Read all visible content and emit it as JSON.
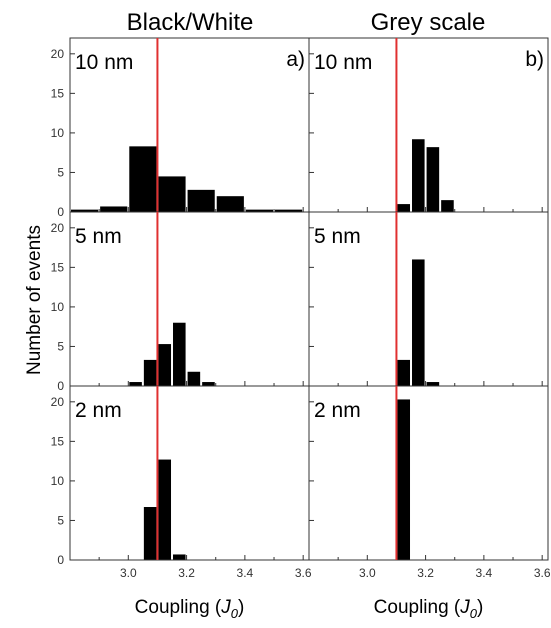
{
  "figure": {
    "column_titles": [
      "Black/White",
      "Grey scale"
    ],
    "ylabel": "Number of events",
    "xlabel_prefix": "Coupling (",
    "xlabel_symbol": "J",
    "xlabel_subscript": "0",
    "xlabel_suffix": ")",
    "colors": {
      "bar": "#000000",
      "threshold": "#e03030",
      "axis": "#333333"
    }
  },
  "chart_data": [
    {
      "type": "bar",
      "panel_label": "a)",
      "size_label": "10 nm",
      "row": 0,
      "col": 0,
      "xlim": [
        2.8,
        3.62
      ],
      "ylim": [
        0,
        22
      ],
      "xticks": [
        3.0,
        3.2,
        3.4,
        3.6
      ],
      "yticks": [
        0,
        5,
        10,
        15,
        20
      ],
      "threshold": 3.1,
      "bin_width": 0.05,
      "bins": [
        2.85,
        2.95,
        3.05,
        3.15,
        3.25,
        3.35,
        3.45,
        3.55
      ],
      "values": [
        0.3,
        0.7,
        8.3,
        4.5,
        2.8,
        2.0,
        0.3,
        0.3
      ]
    },
    {
      "type": "bar",
      "panel_label": "b)",
      "size_label": "10 nm",
      "row": 0,
      "col": 1,
      "xlim": [
        2.8,
        3.62
      ],
      "ylim": [
        0,
        22
      ],
      "xticks": [
        3.0,
        3.2,
        3.4,
        3.6
      ],
      "yticks": [
        0,
        5,
        10,
        15,
        20
      ],
      "threshold": 3.1,
      "bin_width": 0.025,
      "bins": [
        3.125,
        3.175,
        3.225,
        3.275
      ],
      "values": [
        1.0,
        9.2,
        8.2,
        1.5
      ]
    },
    {
      "type": "bar",
      "panel_label": "",
      "size_label": "5 nm",
      "row": 1,
      "col": 0,
      "xlim": [
        2.8,
        3.62
      ],
      "ylim": [
        0,
        22
      ],
      "xticks": [
        3.0,
        3.2,
        3.4,
        3.6
      ],
      "yticks": [
        0,
        5,
        10,
        15,
        20
      ],
      "threshold": 3.1,
      "bin_width": 0.025,
      "bins": [
        3.025,
        3.075,
        3.125,
        3.175,
        3.225,
        3.275
      ],
      "values": [
        0.5,
        3.3,
        5.3,
        8.0,
        1.8,
        0.5
      ]
    },
    {
      "type": "bar",
      "panel_label": "",
      "size_label": "5 nm",
      "row": 1,
      "col": 1,
      "xlim": [
        2.8,
        3.62
      ],
      "ylim": [
        0,
        22
      ],
      "xticks": [
        3.0,
        3.2,
        3.4,
        3.6
      ],
      "yticks": [
        0,
        5,
        10,
        15,
        20
      ],
      "threshold": 3.1,
      "bin_width": 0.025,
      "bins": [
        3.125,
        3.175,
        3.225
      ],
      "values": [
        3.3,
        16.0,
        0.5
      ]
    },
    {
      "type": "bar",
      "panel_label": "",
      "size_label": "2 nm",
      "row": 2,
      "col": 0,
      "xlim": [
        2.8,
        3.62
      ],
      "ylim": [
        0,
        22
      ],
      "xticks": [
        3.0,
        3.2,
        3.4,
        3.6
      ],
      "yticks": [
        0,
        5,
        10,
        15,
        20
      ],
      "threshold": 3.1,
      "bin_width": 0.025,
      "bins": [
        3.075,
        3.125,
        3.175
      ],
      "values": [
        6.7,
        12.7,
        0.7
      ]
    },
    {
      "type": "bar",
      "panel_label": "",
      "size_label": "2 nm",
      "row": 2,
      "col": 1,
      "xlim": [
        2.8,
        3.62
      ],
      "ylim": [
        0,
        22
      ],
      "xticks": [
        3.0,
        3.2,
        3.4,
        3.6
      ],
      "yticks": [
        0,
        5,
        10,
        15,
        20
      ],
      "threshold": 3.1,
      "bin_width": 0.025,
      "bins": [
        3.125
      ],
      "values": [
        20.3
      ]
    }
  ]
}
